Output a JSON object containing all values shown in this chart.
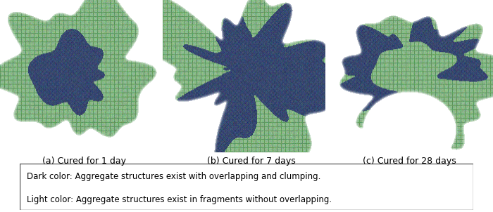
{
  "labels": [
    "(a) Cured for 1 day",
    "(b) Cured for 7 days",
    "(c) Cured for 28 days"
  ],
  "legend_line1": "Dark color: Aggregate structures exist with overlapping and clumping.",
  "legend_line2": "Light color: Aggregate structures exist in fragments without overlapping.",
  "bg_color": "#ffffff",
  "text_color": "#000000",
  "label_fontsize": 9,
  "legend_fontsize": 8.5,
  "light_green": "#8aba8a",
  "dark_blue_gray": "#3a4a6b",
  "mesh_dark": "#2d5a2d",
  "legend_box_edge": "#555555"
}
